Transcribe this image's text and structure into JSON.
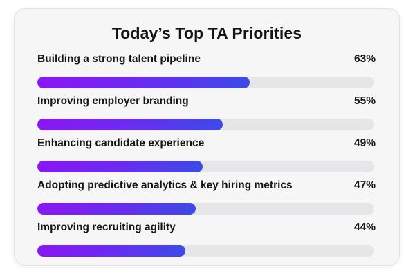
{
  "chart_data": {
    "type": "bar",
    "orientation": "horizontal",
    "title": "Today’s Top TA Priorities",
    "xlim": [
      0,
      100
    ],
    "value_format": "percent",
    "bars": [
      {
        "label": "Building a strong talent pipeline",
        "value": 63,
        "display": "63%"
      },
      {
        "label": "Improving employer branding",
        "value": 55,
        "display": "55%"
      },
      {
        "label": "Enhancing candidate experience",
        "value": 49,
        "display": "49%"
      },
      {
        "label": "Adopting predictive analytics & key hiring metrics",
        "value": 47,
        "display": "47%"
      },
      {
        "label": "Improving recruiting agility",
        "value": 44,
        "display": "44%"
      }
    ],
    "colors": {
      "bar_gradient_start": "#8a17f4",
      "bar_gradient_end": "#3d4ae6",
      "track": "#e6e6e8",
      "card_background": "#f6f6f7"
    }
  }
}
